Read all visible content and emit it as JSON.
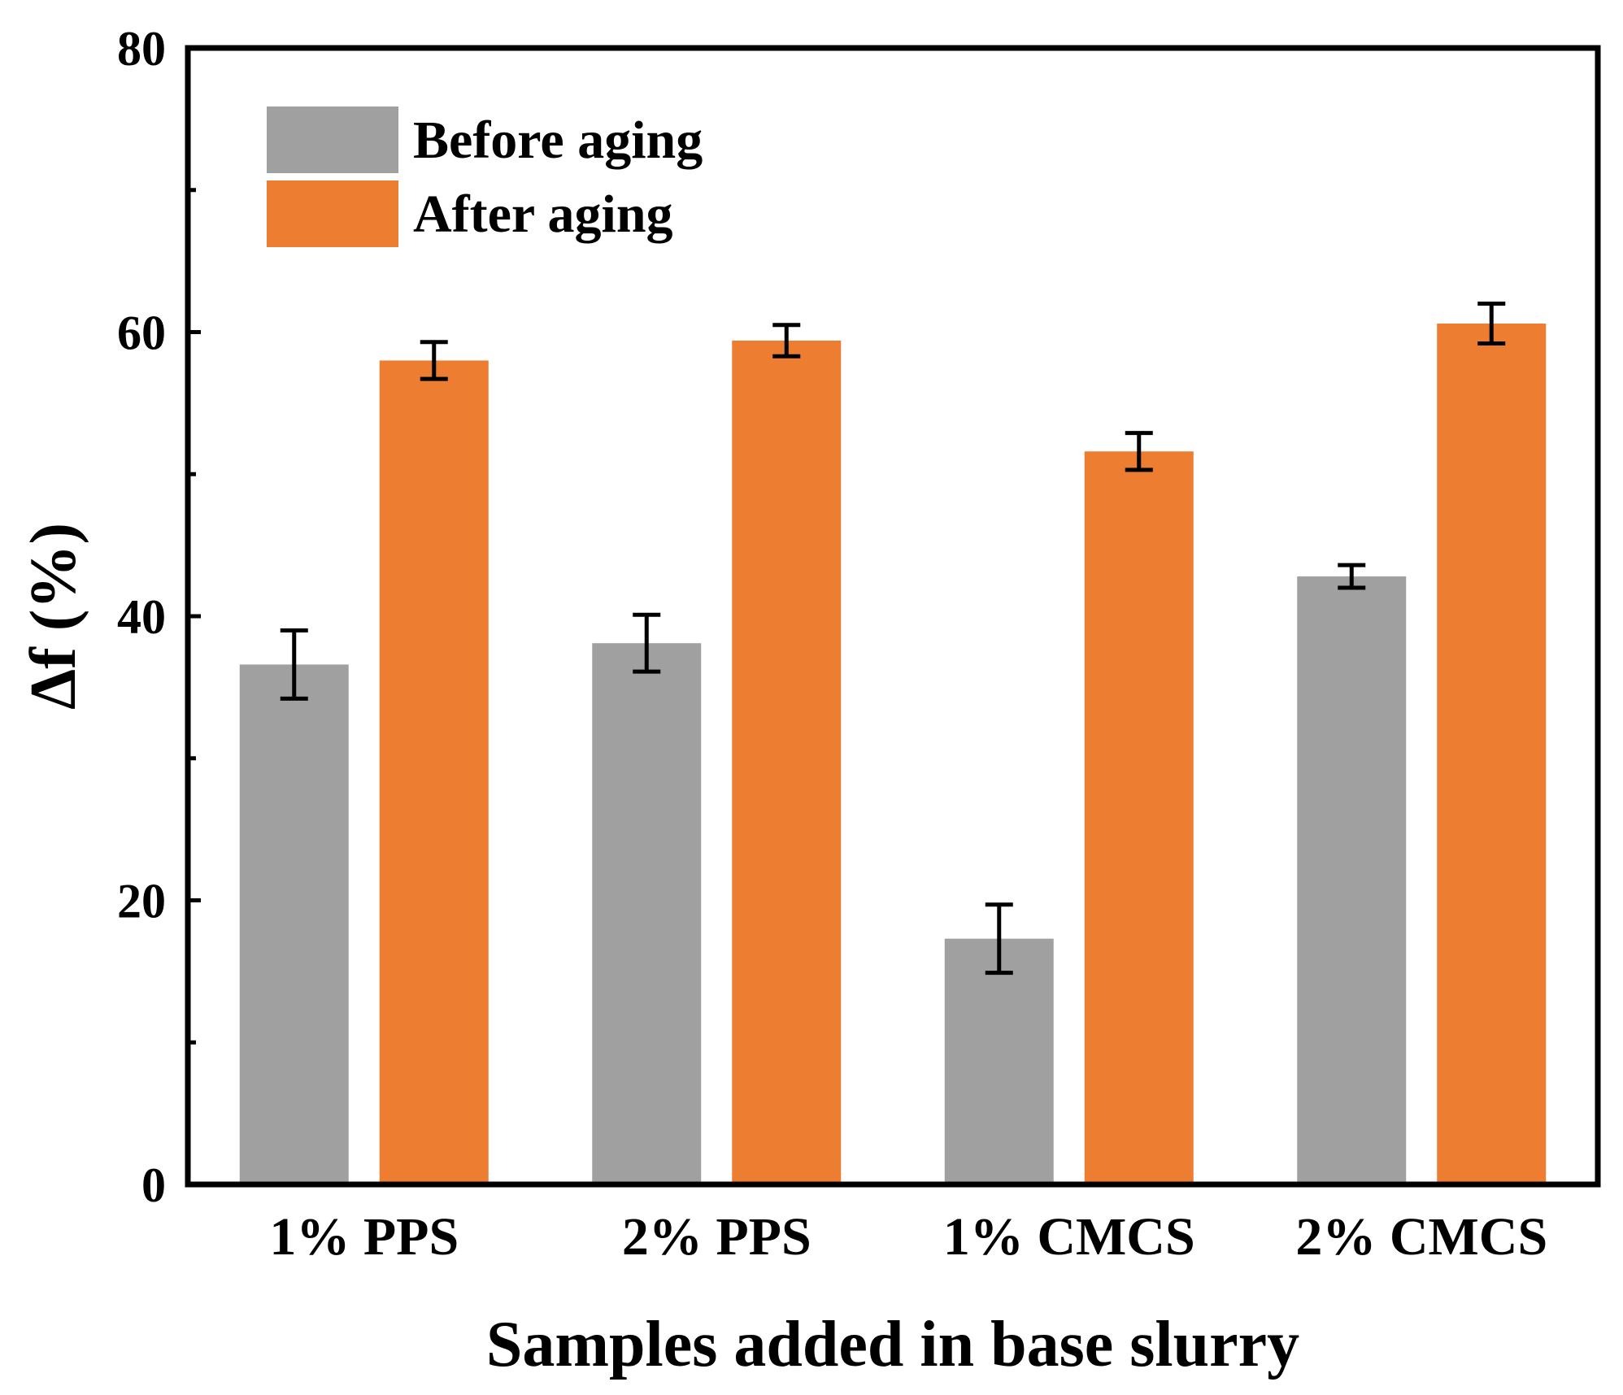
{
  "chart_data": {
    "type": "bar",
    "title": "",
    "xlabel": "Samples added in base slurry",
    "ylabel": "Δf (%)",
    "ylim": [
      0,
      80
    ],
    "yticks": [
      0,
      20,
      40,
      60,
      80
    ],
    "tick_labels": [
      "0",
      "20",
      "40",
      "60",
      "80"
    ],
    "categories": [
      "1% PPS",
      "2% PPS",
      "1% CMCS",
      "2% CMCS"
    ],
    "series": [
      {
        "name": "Before aging",
        "color": "#a0a0a0",
        "values": [
          36.6,
          38.1,
          17.3,
          42.8
        ],
        "errors": [
          2.4,
          2.0,
          2.4,
          0.8
        ]
      },
      {
        "name": "After aging",
        "color": "#ed7d31",
        "values": [
          58.0,
          59.4,
          51.6,
          60.6
        ],
        "errors": [
          1.3,
          1.1,
          1.3,
          1.4
        ]
      }
    ],
    "legend_position": "top-left",
    "grid": false
  }
}
